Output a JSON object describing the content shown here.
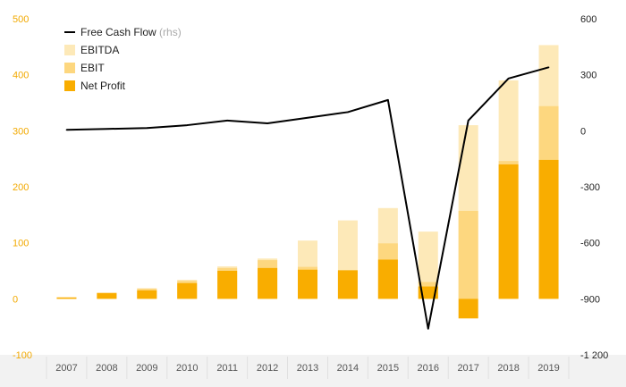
{
  "chart_data": {
    "type": "bar+line",
    "categories": [
      "2007",
      "2008",
      "2009",
      "2010",
      "2011",
      "2012",
      "2013",
      "2014",
      "2015",
      "2016",
      "2017",
      "2018",
      "2019"
    ],
    "bar_series": [
      {
        "name": "EBITDA",
        "color": "#fde9b8",
        "values": [
          3,
          11,
          19,
          34,
          58,
          72,
          104,
          140,
          162,
          120,
          310,
          390,
          453
        ]
      },
      {
        "name": "EBIT",
        "color": "#fdd77f",
        "values": [
          3,
          11,
          18,
          32,
          55,
          69,
          57,
          48,
          99,
          30,
          157,
          246,
          344
        ]
      },
      {
        "name": "Net Profit",
        "color": "#f9ad00",
        "values": [
          2,
          10,
          15,
          28,
          50,
          55,
          52,
          51,
          70,
          22,
          -35,
          240,
          248
        ]
      }
    ],
    "line_series": {
      "name": "Free Cash Flow",
      "axis": "rhs",
      "color": "#000000",
      "values": [
        5,
        10,
        15,
        30,
        55,
        40,
        70,
        100,
        165,
        -1060,
        55,
        280,
        340
      ]
    },
    "left_axis": {
      "ylim": [
        -100,
        500
      ],
      "ticks": [
        "-100",
        "0",
        "100",
        "200",
        "300",
        "400",
        "500"
      ],
      "tick_values": [
        -100,
        0,
        100,
        200,
        300,
        400,
        500
      ]
    },
    "right_axis": {
      "ylim": [
        -1200,
        600
      ],
      "ticks": [
        "-1 200",
        "-900",
        "-600",
        "-300",
        "0",
        "300",
        "600"
      ],
      "tick_values": [
        -1200,
        -900,
        -600,
        -300,
        0,
        300,
        600
      ]
    },
    "legend": [
      {
        "label": "Free Cash Flow",
        "sub": "(rhs)",
        "kind": "line",
        "color": "#000000"
      },
      {
        "label": "EBITDA",
        "sub": "",
        "kind": "box",
        "color": "#fde9b8"
      },
      {
        "label": "EBIT",
        "sub": "",
        "kind": "box",
        "color": "#fdd77f"
      },
      {
        "label": "Net Profit",
        "sub": "",
        "kind": "box",
        "color": "#f9ad00"
      }
    ],
    "legend_placement": "top-left",
    "grid": false,
    "title": "",
    "xlabel": "",
    "ylabel": ""
  }
}
